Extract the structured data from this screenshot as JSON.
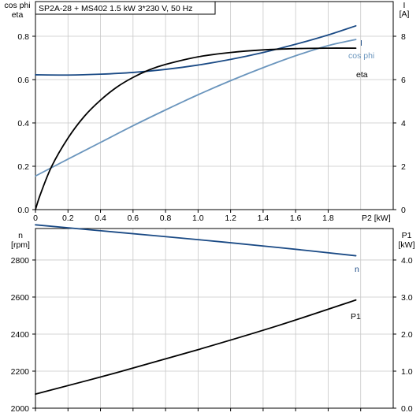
{
  "chart_data": [
    {
      "type": "line",
      "title": "SP2A-28 + MS402   1.5 kW   3*230 V, 50 Hz",
      "xlabel": "P2 [kW]",
      "xlim": [
        0,
        2.2
      ],
      "x_ticks": [
        "0",
        "0.2",
        "0.4",
        "0.6",
        "0.8",
        "1.0",
        "1.2",
        "1.4",
        "1.6",
        "1.8"
      ],
      "left_axis": {
        "label_line1": "cos phi",
        "label_line2": "eta",
        "ylim": [
          0,
          0.96
        ],
        "ticks": [
          "0.0",
          "0.2",
          "0.4",
          "0.6",
          "0.8"
        ]
      },
      "right_axis": {
        "label_line1": "I",
        "label_line2": "[A]",
        "ylim": [
          0,
          9.6
        ],
        "ticks": [
          "0",
          "2",
          "4",
          "6",
          "8"
        ]
      },
      "grid": true,
      "series": [
        {
          "name": "I",
          "axis": "right",
          "color": "#1a4a85",
          "x": [
            0,
            0.2,
            0.4,
            0.6,
            0.8,
            1.0,
            1.2,
            1.4,
            1.6,
            1.8,
            1.97
          ],
          "values": [
            6.22,
            6.21,
            6.25,
            6.33,
            6.47,
            6.67,
            6.93,
            7.25,
            7.63,
            8.06,
            8.48
          ]
        },
        {
          "name": "cos phi",
          "axis": "left",
          "color": "#6a95bd",
          "x": [
            0,
            0.2,
            0.4,
            0.6,
            0.8,
            1.0,
            1.2,
            1.4,
            1.6,
            1.8,
            1.97
          ],
          "values": [
            0.155,
            0.233,
            0.31,
            0.387,
            0.46,
            0.53,
            0.595,
            0.655,
            0.71,
            0.757,
            0.785
          ]
        },
        {
          "name": "eta",
          "axis": "left",
          "color": "#000000",
          "x": [
            0,
            0.03,
            0.1,
            0.2,
            0.3,
            0.4,
            0.5,
            0.6,
            0.7,
            0.8,
            1.0,
            1.2,
            1.4,
            1.6,
            1.8,
            1.97
          ],
          "values": [
            0,
            0.07,
            0.2,
            0.33,
            0.43,
            0.505,
            0.565,
            0.61,
            0.645,
            0.67,
            0.705,
            0.725,
            0.737,
            0.743,
            0.745,
            0.745
          ]
        }
      ]
    },
    {
      "type": "line",
      "xlim": [
        0,
        2.2
      ],
      "left_axis": {
        "label_line1": "n",
        "label_line2": "[rpm]",
        "ylim": [
          2000,
          2970
        ],
        "ticks": [
          "2000",
          "2200",
          "2400",
          "2600",
          "2800"
        ]
      },
      "right_axis": {
        "label_line1": "P1",
        "label_line2": "[kW]",
        "ylim": [
          0,
          4.85
        ],
        "ticks": [
          "0.0",
          "1.0",
          "2.0",
          "3.0",
          "4.0"
        ]
      },
      "grid": true,
      "series": [
        {
          "name": "n",
          "axis": "left",
          "color": "#1a4a85",
          "x": [
            0,
            0.5,
            1.0,
            1.5,
            1.97
          ],
          "values": [
            2990,
            2950,
            2910,
            2867,
            2823
          ]
        },
        {
          "name": "P1",
          "axis": "right",
          "color": "#000000",
          "x": [
            0,
            0.5,
            1.0,
            1.5,
            1.97
          ],
          "values": [
            0.38,
            0.96,
            1.58,
            2.24,
            2.92
          ]
        }
      ]
    }
  ]
}
